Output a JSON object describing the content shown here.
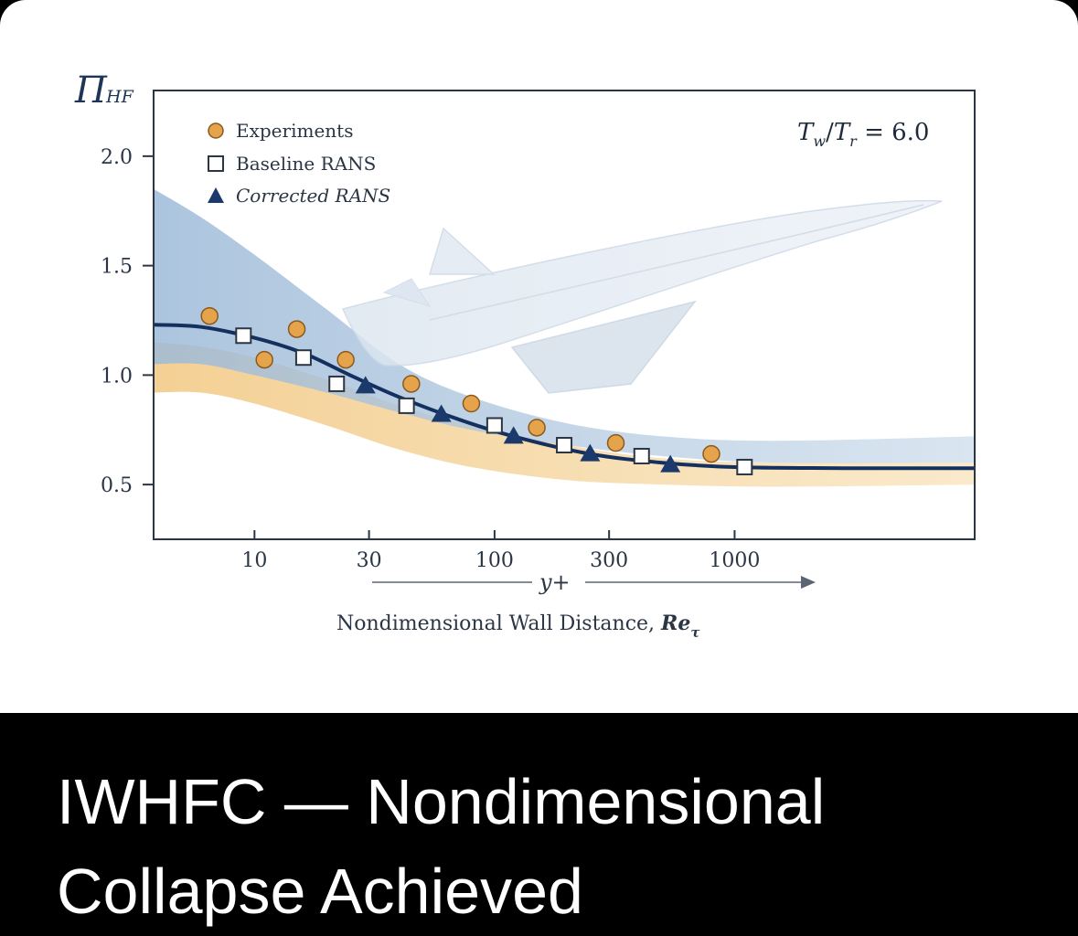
{
  "caption": {
    "text": "IWHFC — Nondimensional Collapse Achieved"
  },
  "chart_data": {
    "type": "scatter",
    "y_symbol_main": "Π",
    "y_symbol_sub": "HF",
    "annotation": {
      "T1": "T",
      "sub1": "w",
      "slash": "/",
      "T2": "T",
      "sub2": "r",
      "rest": " = 6.0"
    },
    "xlabel_main": "Nondimensional Wall Distance, ",
    "xlabel_sym": "Re",
    "xlabel_sub": "τ",
    "arrow_label": "y+",
    "x_scale": "log",
    "xlim": [
      3.8,
      10000
    ],
    "ylim": [
      0.25,
      2.3
    ],
    "x_ticks": [
      {
        "v": 10,
        "label": "10"
      },
      {
        "v": 30,
        "label": "30"
      },
      {
        "v": 100,
        "label": "100"
      },
      {
        "v": 300,
        "label": "300"
      },
      {
        "v": 1000,
        "label": "1000"
      }
    ],
    "y_ticks": [
      {
        "v": 0.5,
        "label": "0.5"
      },
      {
        "v": 1.0,
        "label": "1.0"
      },
      {
        "v": 1.5,
        "label": "1.5"
      },
      {
        "v": 2.0,
        "label": "2.0"
      }
    ],
    "legend": {
      "position": "top-left",
      "entries": [
        "Experiments",
        "Baseline RANS",
        "Corrected RANS"
      ]
    },
    "colors": {
      "experiments": "#e5a34c",
      "baseline": "#ffffff",
      "corrected": "#1b3a6b",
      "fit": "#14305f",
      "band_blue": "#a9c2dc",
      "band_orange": "#f2c77a",
      "axis": "#2b3645"
    },
    "series": [
      {
        "name": "Experiments",
        "marker": "circle",
        "points": [
          [
            6.5,
            1.27
          ],
          [
            11,
            1.07
          ],
          [
            15,
            1.21
          ],
          [
            24,
            1.07
          ],
          [
            45,
            0.96
          ],
          [
            80,
            0.87
          ],
          [
            150,
            0.76
          ],
          [
            320,
            0.69
          ],
          [
            800,
            0.64
          ]
        ]
      },
      {
        "name": "Baseline RANS",
        "marker": "square",
        "points": [
          [
            9,
            1.18
          ],
          [
            16,
            1.08
          ],
          [
            22,
            0.96
          ],
          [
            43,
            0.86
          ],
          [
            100,
            0.77
          ],
          [
            195,
            0.68
          ],
          [
            410,
            0.63
          ],
          [
            1100,
            0.58
          ]
        ]
      },
      {
        "name": "Corrected RANS",
        "marker": "triangle",
        "points": [
          [
            29,
            0.95
          ],
          [
            60,
            0.82
          ],
          [
            120,
            0.72
          ],
          [
            250,
            0.64
          ],
          [
            540,
            0.59
          ]
        ]
      }
    ],
    "fit_curve": [
      [
        3.8,
        1.23
      ],
      [
        6,
        1.22
      ],
      [
        10,
        1.17
      ],
      [
        16,
        1.1
      ],
      [
        25,
        1.0
      ],
      [
        40,
        0.9
      ],
      [
        70,
        0.8
      ],
      [
        120,
        0.72
      ],
      [
        250,
        0.64
      ],
      [
        500,
        0.6
      ],
      [
        1000,
        0.58
      ],
      [
        3000,
        0.575
      ],
      [
        10000,
        0.575
      ]
    ],
    "band_blue": {
      "upper": [
        [
          3.8,
          1.85
        ],
        [
          6,
          1.72
        ],
        [
          10,
          1.55
        ],
        [
          20,
          1.3
        ],
        [
          40,
          1.05
        ],
        [
          80,
          0.9
        ],
        [
          200,
          0.78
        ],
        [
          500,
          0.72
        ],
        [
          1500,
          0.7
        ],
        [
          10000,
          0.72
        ]
      ],
      "lower": [
        [
          3.8,
          1.05
        ],
        [
          6,
          1.05
        ],
        [
          10,
          1.0
        ],
        [
          20,
          0.92
        ],
        [
          40,
          0.83
        ],
        [
          80,
          0.75
        ],
        [
          200,
          0.68
        ],
        [
          500,
          0.63
        ],
        [
          1500,
          0.6
        ],
        [
          10000,
          0.6
        ]
      ]
    },
    "band_orange": {
      "upper": [
        [
          3.8,
          1.15
        ],
        [
          6,
          1.13
        ],
        [
          10,
          1.08
        ],
        [
          20,
          0.98
        ],
        [
          40,
          0.86
        ],
        [
          80,
          0.77
        ],
        [
          200,
          0.68
        ],
        [
          500,
          0.62
        ],
        [
          1500,
          0.6
        ],
        [
          10000,
          0.6
        ]
      ],
      "lower": [
        [
          3.8,
          0.92
        ],
        [
          6,
          0.92
        ],
        [
          10,
          0.87
        ],
        [
          20,
          0.77
        ],
        [
          40,
          0.66
        ],
        [
          80,
          0.58
        ],
        [
          200,
          0.52
        ],
        [
          500,
          0.5
        ],
        [
          1500,
          0.49
        ],
        [
          10000,
          0.5
        ]
      ]
    }
  }
}
